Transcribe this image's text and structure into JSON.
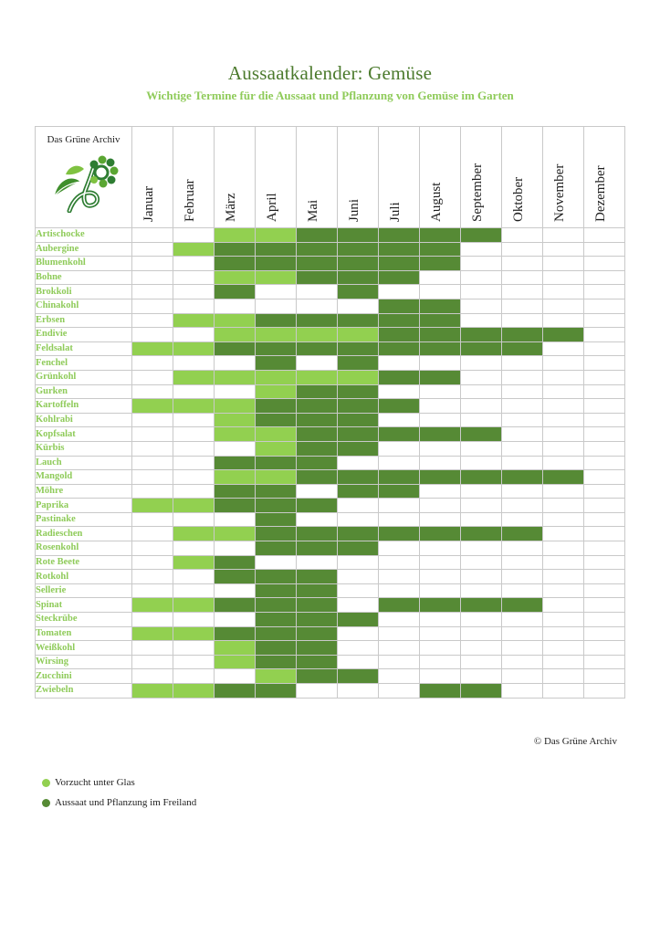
{
  "title": "Aussaatkalender: Gemüse",
  "subtitle": "Wichtige Termine für die Aussaat und Pflanzung von Gemüse im Garten",
  "brand": "Das Grüne Archiv",
  "copyright": "© Das Grüne Archiv",
  "colors": {
    "vorzucht": "#92d050",
    "freiland": "#568a35",
    "title": "#4b7a2c",
    "accent": "#8fcb5a"
  },
  "months": [
    "Januar",
    "Februar",
    "März",
    "April",
    "Mai",
    "Juni",
    "Juli",
    "August",
    "September",
    "Oktober",
    "November",
    "Dezember"
  ],
  "legend": [
    {
      "key": "l",
      "label": "Vorzucht unter Glas"
    },
    {
      "key": "d",
      "label": "Aussaat und Pflanzung im Freiland"
    }
  ],
  "rows": [
    {
      "name": "Artischocke",
      "cells": "--llddddd---"
    },
    {
      "name": "Aubergine",
      "cells": "-ldddddd----"
    },
    {
      "name": "Blumenkohl",
      "cells": "--dddddd----"
    },
    {
      "name": "Bohne",
      "cells": "--llddd-----"
    },
    {
      "name": "Brokkoli",
      "cells": "--d--d------"
    },
    {
      "name": "Chinakohl",
      "cells": "------dd----"
    },
    {
      "name": "Erbsen",
      "cells": "-llddddd----"
    },
    {
      "name": "Endivie",
      "cells": "--llllddddd-"
    },
    {
      "name": "Feldsalat",
      "cells": "lldddddddd--"
    },
    {
      "name": "Fenchel",
      "cells": "---d-d------"
    },
    {
      "name": "Grünkohl",
      "cells": "-llllldd----"
    },
    {
      "name": "Gurken",
      "cells": "---ldd------"
    },
    {
      "name": "Kartoffeln",
      "cells": "llldddd-----"
    },
    {
      "name": "Kohlrabi",
      "cells": "--lddd------"
    },
    {
      "name": "Kopfsalat",
      "cells": "--llddddd---"
    },
    {
      "name": "Kürbis",
      "cells": "---ldd------"
    },
    {
      "name": "Lauch",
      "cells": "--ddd-------"
    },
    {
      "name": "Mangold",
      "cells": "--llddddddd-"
    },
    {
      "name": "Möhre",
      "cells": "--dd-dd-----"
    },
    {
      "name": "Paprika",
      "cells": "llddd-------"
    },
    {
      "name": "Pastinake",
      "cells": "---d--------"
    },
    {
      "name": "Radieschen",
      "cells": "-llddddddd--"
    },
    {
      "name": "Rosenkohl",
      "cells": "---ddd------"
    },
    {
      "name": "Rote Beete",
      "cells": "-ld---------"
    },
    {
      "name": "Rotkohl",
      "cells": "--ddd-------"
    },
    {
      "name": "Sellerie",
      "cells": "---dd-------"
    },
    {
      "name": "Spinat",
      "cells": "llddd-dddd--"
    },
    {
      "name": "Steckrübe",
      "cells": "---ddd------"
    },
    {
      "name": "Tomaten",
      "cells": "llddd-------"
    },
    {
      "name": "Weißkohl",
      "cells": "--ldd-------"
    },
    {
      "name": "Wirsing",
      "cells": "--ldd-------"
    },
    {
      "name": "Zucchini",
      "cells": "---ldd------"
    },
    {
      "name": "Zwiebeln",
      "cells": "lldd---dd---"
    }
  ]
}
